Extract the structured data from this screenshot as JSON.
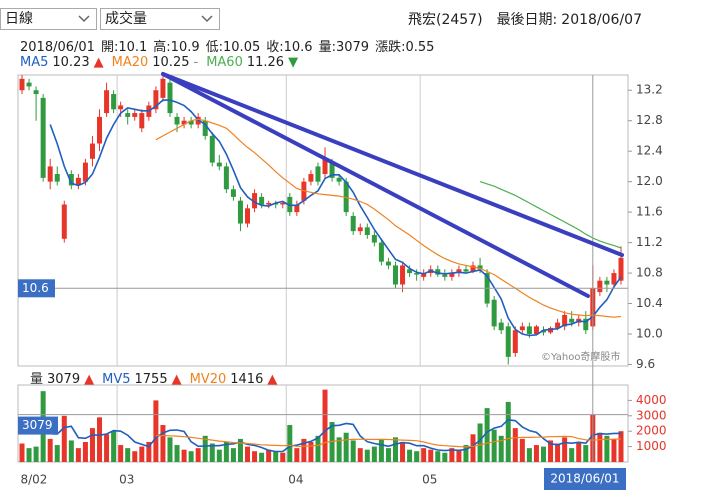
{
  "header": {
    "period_select": "日線",
    "indicator_select": "成交量",
    "stock": "飛宏(2457)",
    "last_date_label": "最後日期:",
    "last_date": "2018/06/07"
  },
  "info_bar": {
    "date": "2018/06/01",
    "fields": [
      {
        "label": "開:",
        "value": 10.1
      },
      {
        "label": "高:",
        "value": 10.9
      },
      {
        "label": "低:",
        "value": 10.05
      },
      {
        "label": "收:",
        "value": 10.6
      },
      {
        "label": "量:",
        "value": 3079
      },
      {
        "label": "漲跌:",
        "value": 0.55
      }
    ]
  },
  "crosshair": {
    "date": "2018/06/01",
    "price": 10.6,
    "volume": 3079
  },
  "watermark": "©Yahoo奇摩股市",
  "chart_data": [
    {
      "type": "candlestick",
      "up_color": "#e8352a",
      "down_color": "#2f9a3f",
      "tick_color": "#444444",
      "categories": [
        "8/02",
        null,
        null,
        null,
        null,
        null,
        null,
        null,
        null,
        null,
        null,
        null,
        null,
        null,
        "03",
        null,
        null,
        null,
        null,
        null,
        null,
        null,
        null,
        null,
        null,
        null,
        null,
        null,
        null,
        null,
        null,
        null,
        null,
        null,
        null,
        null,
        null,
        null,
        "04",
        null,
        null,
        null,
        null,
        null,
        null,
        null,
        null,
        null,
        null,
        null,
        null,
        null,
        null,
        null,
        null,
        null,
        null,
        "05",
        null,
        null,
        null,
        null,
        null,
        null,
        null,
        null,
        null,
        null,
        null,
        null,
        null,
        null,
        null,
        null,
        null,
        null,
        null,
        null,
        null,
        null,
        null,
        null,
        null,
        null,
        null,
        null
      ],
      "open": [
        13.2,
        13.3,
        13.2,
        13.1,
        12.0,
        12.1,
        11.25,
        12.1,
        11.95,
        12.0,
        12.3,
        12.5,
        12.9,
        13.15,
        12.95,
        12.9,
        12.85,
        12.7,
        12.85,
        12.95,
        13.1,
        13.3,
        12.85,
        12.75,
        12.8,
        12.75,
        12.8,
        12.6,
        12.25,
        12.2,
        11.9,
        11.75,
        11.45,
        11.65,
        11.8,
        11.7,
        11.72,
        11.7,
        11.8,
        11.6,
        11.75,
        12.0,
        12.2,
        12.1,
        12.25,
        12.05,
        12.0,
        11.55,
        11.35,
        11.4,
        11.3,
        11.2,
        10.95,
        10.9,
        10.65,
        10.85,
        10.8,
        10.75,
        10.8,
        10.85,
        10.78,
        10.75,
        10.8,
        10.85,
        10.82,
        10.9,
        10.8,
        10.45,
        10.15,
        10.1,
        9.75,
        10.05,
        10.1,
        10.0,
        10.05,
        10.02,
        10.08,
        10.1,
        10.2,
        10.15,
        10.2,
        10.1,
        10.55,
        10.7,
        10.65,
        10.7
      ],
      "high": [
        13.4,
        13.35,
        13.25,
        13.15,
        12.3,
        12.2,
        11.75,
        12.15,
        12.1,
        12.3,
        12.6,
        12.95,
        13.3,
        13.2,
        13.05,
        12.95,
        12.95,
        12.95,
        13.05,
        13.25,
        13.4,
        13.35,
        12.9,
        12.85,
        12.85,
        12.9,
        12.85,
        12.65,
        12.35,
        12.25,
        11.95,
        11.8,
        11.7,
        11.9,
        11.85,
        11.75,
        11.75,
        11.75,
        11.85,
        11.75,
        12.05,
        12.15,
        12.25,
        12.45,
        12.3,
        12.1,
        12.05,
        11.6,
        11.45,
        11.45,
        11.35,
        11.25,
        11.0,
        10.95,
        10.95,
        10.9,
        10.85,
        10.85,
        10.9,
        10.9,
        10.85,
        10.85,
        10.9,
        10.9,
        10.95,
        11.0,
        10.85,
        10.5,
        10.2,
        10.15,
        10.1,
        10.15,
        10.15,
        10.12,
        10.1,
        10.1,
        10.2,
        10.3,
        10.3,
        10.25,
        10.3,
        10.9,
        10.75,
        10.75,
        10.85,
        11.15
      ],
      "low": [
        13.15,
        13.2,
        12.8,
        12.0,
        11.9,
        11.95,
        11.2,
        11.9,
        11.9,
        11.95,
        12.2,
        12.4,
        12.85,
        12.9,
        12.85,
        12.75,
        12.8,
        12.65,
        12.8,
        12.9,
        13.05,
        12.85,
        12.65,
        12.7,
        12.7,
        12.7,
        12.55,
        12.2,
        12.15,
        11.85,
        11.75,
        11.35,
        11.4,
        11.6,
        11.65,
        11.65,
        11.65,
        11.65,
        11.55,
        11.55,
        11.7,
        11.95,
        11.95,
        12.05,
        12.0,
        11.95,
        11.55,
        11.3,
        11.3,
        11.25,
        11.15,
        10.9,
        10.85,
        10.6,
        10.55,
        10.75,
        10.7,
        10.7,
        10.75,
        10.75,
        10.7,
        10.7,
        10.75,
        10.8,
        10.8,
        10.8,
        10.35,
        10.05,
        10.0,
        9.6,
        9.7,
        10.0,
        9.95,
        9.98,
        9.98,
        10.0,
        10.05,
        10.05,
        10.1,
        10.1,
        10.0,
        10.05,
        10.5,
        10.55,
        10.6,
        10.65
      ],
      "close": [
        13.35,
        13.25,
        13.15,
        12.05,
        12.2,
        12.0,
        11.7,
        11.95,
        12.05,
        12.25,
        12.5,
        12.85,
        13.2,
        12.95,
        13.0,
        12.85,
        12.9,
        12.9,
        13.0,
        13.2,
        13.35,
        12.9,
        12.75,
        12.8,
        12.75,
        12.85,
        12.6,
        12.25,
        12.2,
        11.9,
        11.8,
        11.45,
        11.65,
        11.85,
        11.7,
        11.72,
        11.7,
        11.72,
        11.6,
        11.7,
        12.0,
        12.1,
        12.0,
        12.3,
        12.05,
        12.0,
        11.6,
        11.35,
        11.4,
        11.3,
        11.2,
        10.95,
        10.9,
        10.65,
        10.9,
        10.8,
        10.78,
        10.8,
        10.85,
        10.78,
        10.75,
        10.8,
        10.85,
        10.82,
        10.9,
        10.85,
        10.4,
        10.1,
        10.05,
        9.7,
        10.05,
        10.1,
        10.0,
        10.1,
        10.02,
        10.08,
        10.15,
        10.25,
        10.15,
        10.2,
        10.05,
        10.6,
        10.7,
        10.65,
        10.8,
        11.0
      ],
      "ylim": [
        9.58,
        13.4
      ],
      "yticks": [
        9.6,
        {
          "value": 10,
          "label": "10.0"
        },
        10.4,
        10.8,
        11.2,
        11.6,
        {
          "value": 12,
          "label": "12.0"
        },
        12.4,
        12.8,
        13.2
      ],
      "series": [
        {
          "name": "MA5",
          "color": "#1f5fbf",
          "current_value": 10.23,
          "trend": "▲",
          "trend_color": "#e8352a",
          "values": [
            null,
            null,
            null,
            null,
            12.75,
            12.5,
            12.2,
            11.98,
            11.95,
            11.99,
            12.1,
            12.32,
            12.57,
            12.75,
            12.9,
            12.97,
            12.95,
            12.93,
            12.93,
            12.99,
            13.07,
            13.07,
            13.04,
            13.0,
            12.92,
            12.81,
            12.75,
            12.63,
            12.53,
            12.36,
            12.15,
            11.92,
            11.8,
            11.73,
            11.69,
            11.68,
            11.72,
            11.74,
            11.69,
            11.69,
            11.75,
            11.82,
            11.88,
            12.04,
            12.09,
            12.09,
            11.99,
            11.86,
            11.68,
            11.53,
            11.37,
            11.24,
            11.11,
            10.98,
            10.94,
            10.86,
            10.81,
            10.79,
            10.83,
            10.8,
            10.79,
            10.8,
            10.81,
            10.8,
            10.82,
            10.84,
            10.76,
            10.61,
            10.46,
            10.21,
            10.06,
            10.0,
            9.98,
            9.99,
            10.05,
            10.06,
            10.07,
            10.12,
            10.13,
            10.17,
            10.16,
            10.23,
            10.35,
            10.45,
            10.62,
            10.75
          ]
        },
        {
          "name": "MA20",
          "color": "#f0821e",
          "current_value": 10.25,
          "trend": "-",
          "trend_color": "#888888",
          "values": [
            null,
            null,
            null,
            null,
            null,
            null,
            null,
            null,
            null,
            null,
            null,
            null,
            null,
            null,
            null,
            null,
            null,
            null,
            null,
            12.55,
            12.6,
            12.65,
            12.7,
            12.75,
            12.8,
            12.82,
            12.8,
            12.77,
            12.74,
            12.7,
            12.62,
            12.53,
            12.45,
            12.38,
            12.3,
            12.22,
            12.13,
            12.05,
            11.98,
            11.91,
            11.88,
            11.86,
            11.84,
            11.83,
            11.82,
            11.81,
            11.79,
            11.77,
            11.74,
            11.7,
            11.64,
            11.57,
            11.5,
            11.42,
            11.36,
            11.3,
            11.23,
            11.16,
            11.1,
            11.04,
            10.99,
            10.95,
            10.92,
            10.9,
            10.88,
            10.86,
            10.82,
            10.78,
            10.72,
            10.66,
            10.6,
            10.54,
            10.48,
            10.43,
            10.38,
            10.34,
            10.31,
            10.28,
            10.26,
            10.25,
            10.24,
            10.25,
            10.24,
            10.23,
            10.22,
            10.23
          ]
        },
        {
          "name": "MA60",
          "color": "#4caf50",
          "current_value": 11.26,
          "trend": "▼",
          "trend_color": "#2f9a3f",
          "values": [
            null,
            null,
            null,
            null,
            null,
            null,
            null,
            null,
            null,
            null,
            null,
            null,
            null,
            null,
            null,
            null,
            null,
            null,
            null,
            null,
            null,
            null,
            null,
            null,
            null,
            null,
            null,
            null,
            null,
            null,
            null,
            null,
            null,
            null,
            null,
            null,
            null,
            null,
            null,
            null,
            null,
            null,
            null,
            null,
            null,
            null,
            null,
            null,
            null,
            null,
            null,
            null,
            null,
            null,
            null,
            null,
            null,
            null,
            null,
            null,
            null,
            null,
            null,
            null,
            null,
            12.0,
            11.97,
            11.94,
            11.9,
            11.86,
            11.82,
            11.77,
            11.72,
            11.67,
            11.62,
            11.57,
            11.52,
            11.47,
            11.42,
            11.37,
            11.31,
            11.26,
            11.22,
            11.19,
            11.16,
            11.13
          ]
        }
      ]
    },
    {
      "type": "bar",
      "name": "量",
      "color": "#333333",
      "current_value": 3079,
      "trend": "▲",
      "trend_color": "#e8352a",
      "tick_color": "#e8352a",
      "values": [
        1200,
        900,
        1000,
        4600,
        1500,
        1100,
        3000,
        1400,
        900,
        1300,
        2200,
        2900,
        1800,
        2000,
        1100,
        900,
        700,
        1000,
        1300,
        4000,
        2400,
        1600,
        1100,
        800,
        700,
        900,
        1700,
        1200,
        800,
        1300,
        900,
        1500,
        1000,
        700,
        600,
        800,
        700,
        600,
        2400,
        900,
        1500,
        1300,
        1700,
        4700,
        2600,
        1600,
        1900,
        1400,
        900,
        800,
        1000,
        1500,
        900,
        1600,
        1300,
        800,
        700,
        900,
        800,
        700,
        600,
        900,
        800,
        1100,
        1800,
        2500,
        3500,
        2100,
        1700,
        3900,
        2200,
        1500,
        900,
        1100,
        1000,
        1400,
        1200,
        1600,
        900,
        1300,
        1100,
        3079,
        1900,
        1700,
        1500,
        2000
      ],
      "ylim": [
        0,
        5000
      ],
      "yticks": [
        1000,
        2000,
        3000,
        4000
      ],
      "series": [
        {
          "name": "MV5",
          "color": "#1f5fbf",
          "current_value": 1755,
          "trend": "▲",
          "trend_color": "#e8352a",
          "values": [
            null,
            null,
            null,
            null,
            1840,
            1820,
            2240,
            2320,
            1580,
            1540,
            1760,
            1740,
            1820,
            2040,
            2000,
            1740,
            1300,
            1140,
            1000,
            1580,
            1880,
            2060,
            2080,
            1980,
            1320,
            1020,
            1040,
            1060,
            1060,
            1140,
            1180,
            1300,
            1140,
            1080,
            940,
            760,
            680,
            680,
            1020,
            1100,
            1220,
            1340,
            1560,
            2020,
            2360,
            2380,
            2500,
            2440,
            1680,
            1320,
            1200,
            1120,
            1020,
            1160,
            1260,
            1220,
            1060,
            1060,
            900,
            780,
            740,
            780,
            760,
            820,
            1040,
            1420,
            1940,
            2200,
            2320,
            2740,
            2680,
            2280,
            2040,
            1920,
            1520,
            1180,
            1120,
            1260,
            1220,
            1280,
            1220,
            1755,
            1840,
            1810,
            1860,
            1860
          ]
        },
        {
          "name": "MV20",
          "color": "#f0821e",
          "current_value": 1416,
          "trend": "▲",
          "trend_color": "#e8352a",
          "values": [
            null,
            null,
            null,
            null,
            null,
            null,
            null,
            null,
            null,
            null,
            null,
            null,
            null,
            null,
            null,
            null,
            null,
            null,
            null,
            1700,
            1720,
            1700,
            1680,
            1640,
            1600,
            1540,
            1480,
            1420,
            1360,
            1320,
            1260,
            1240,
            1200,
            1160,
            1120,
            1100,
            1080,
            1060,
            1080,
            1020,
            1020,
            1040,
            1080,
            1260,
            1340,
            1380,
            1440,
            1470,
            1480,
            1470,
            1460,
            1470,
            1460,
            1440,
            1420,
            1400,
            1380,
            1300,
            1180,
            1100,
            1060,
            1030,
            1000,
            980,
            1020,
            1100,
            1220,
            1320,
            1380,
            1520,
            1580,
            1600,
            1600,
            1610,
            1620,
            1640,
            1650,
            1660,
            1650,
            1520,
            1440,
            1416,
            1450,
            1470,
            1480,
            1500
          ]
        }
      ]
    }
  ]
}
